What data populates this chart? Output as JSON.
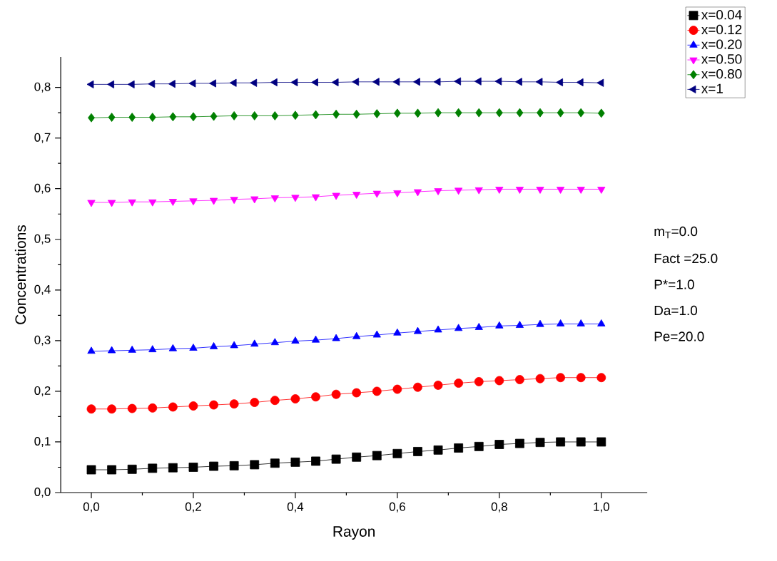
{
  "chart_data": {
    "type": "line",
    "xlabel": "Rayon",
    "ylabel": "Concentrations",
    "x": [
      0,
      0.04,
      0.08,
      0.12,
      0.16,
      0.2,
      0.24,
      0.28,
      0.32,
      0.36,
      0.4,
      0.44,
      0.48,
      0.52,
      0.56,
      0.6,
      0.64,
      0.68,
      0.72,
      0.76,
      0.8,
      0.84,
      0.88,
      0.92,
      0.96,
      1.0
    ],
    "series": [
      {
        "name": "x=0.04",
        "color": "#000000",
        "marker": "square",
        "values": [
          0.045,
          0.045,
          0.046,
          0.048,
          0.049,
          0.05,
          0.052,
          0.053,
          0.055,
          0.058,
          0.06,
          0.062,
          0.066,
          0.07,
          0.073,
          0.077,
          0.081,
          0.084,
          0.088,
          0.091,
          0.095,
          0.097,
          0.099,
          0.1,
          0.1,
          0.1
        ]
      },
      {
        "name": "x=0.12",
        "color": "#ff0000",
        "marker": "circle",
        "values": [
          0.165,
          0.165,
          0.166,
          0.167,
          0.169,
          0.171,
          0.173,
          0.175,
          0.178,
          0.182,
          0.185,
          0.189,
          0.194,
          0.197,
          0.2,
          0.204,
          0.208,
          0.212,
          0.216,
          0.219,
          0.221,
          0.223,
          0.225,
          0.227,
          0.227,
          0.227
        ]
      },
      {
        "name": "x=0.20",
        "color": "#0000ff",
        "marker": "triangle",
        "values": [
          0.279,
          0.28,
          0.281,
          0.282,
          0.284,
          0.285,
          0.288,
          0.29,
          0.293,
          0.296,
          0.299,
          0.301,
          0.304,
          0.308,
          0.311,
          0.315,
          0.318,
          0.321,
          0.324,
          0.326,
          0.329,
          0.33,
          0.332,
          0.333,
          0.333,
          0.333
        ]
      },
      {
        "name": "x=0.50",
        "color": "#ff00ff",
        "marker": "triangle-down",
        "values": [
          0.573,
          0.573,
          0.574,
          0.574,
          0.575,
          0.576,
          0.577,
          0.579,
          0.58,
          0.582,
          0.583,
          0.584,
          0.587,
          0.589,
          0.591,
          0.592,
          0.594,
          0.596,
          0.597,
          0.598,
          0.599,
          0.599,
          0.599,
          0.599,
          0.599,
          0.599
        ]
      },
      {
        "name": "x=0.80",
        "color": "#008000",
        "marker": "diamond",
        "values": [
          0.74,
          0.741,
          0.741,
          0.741,
          0.742,
          0.742,
          0.743,
          0.744,
          0.744,
          0.744,
          0.745,
          0.746,
          0.747,
          0.747,
          0.748,
          0.749,
          0.749,
          0.75,
          0.75,
          0.75,
          0.75,
          0.75,
          0.75,
          0.75,
          0.75,
          0.749
        ]
      },
      {
        "name": "x=1",
        "color": "#000080",
        "marker": "triangle-left",
        "values": [
          0.806,
          0.806,
          0.806,
          0.807,
          0.807,
          0.808,
          0.808,
          0.809,
          0.809,
          0.81,
          0.81,
          0.81,
          0.81,
          0.811,
          0.811,
          0.811,
          0.811,
          0.811,
          0.812,
          0.812,
          0.812,
          0.811,
          0.811,
          0.81,
          0.81,
          0.809
        ]
      }
    ],
    "xlim": [
      -0.06,
      1.09
    ],
    "ylim": [
      0,
      0.86
    ],
    "xticks": [
      {
        "value": 0,
        "label": "0,0"
      },
      {
        "value": 0.2,
        "label": "0,2"
      },
      {
        "value": 0.4,
        "label": "0,4"
      },
      {
        "value": 0.6,
        "label": "0,6"
      },
      {
        "value": 0.8,
        "label": "0,8"
      },
      {
        "value": 1.0,
        "label": "1,0"
      }
    ],
    "yticks": [
      {
        "value": 0,
        "label": "0,0"
      },
      {
        "value": 0.1,
        "label": "0,1"
      },
      {
        "value": 0.2,
        "label": "0,2"
      },
      {
        "value": 0.3,
        "label": "0,3"
      },
      {
        "value": 0.4,
        "label": "0,4"
      },
      {
        "value": 0.5,
        "label": "0,5"
      },
      {
        "value": 0.6,
        "label": "0,6"
      },
      {
        "value": 0.7,
        "label": "0,7"
      },
      {
        "value": 0.8,
        "label": "0,8"
      }
    ],
    "legend": "top right",
    "grid": false,
    "line_style": "solid",
    "annotations": [
      "m$_{T}$=0.0",
      "Fact =25.0",
      "P*=1.0",
      "Da=1.0",
      "Pe=20.0"
    ]
  }
}
